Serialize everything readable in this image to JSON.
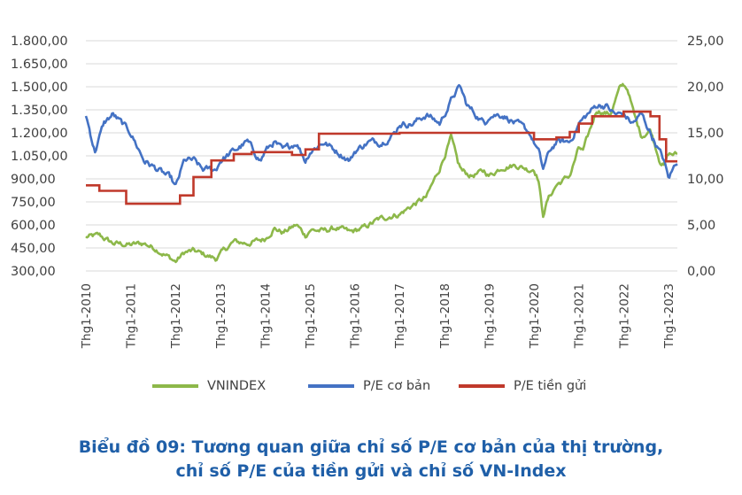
{
  "chart_data": {
    "type": "line",
    "title": "",
    "x_tick_labels": [
      "Thg1-2010",
      "Thg1-2011",
      "Thg1-2012",
      "Thg1-2013",
      "Thg1-2014",
      "Thg1-2015",
      "Thg1-2016",
      "Thg1-2017",
      "Thg1-2018",
      "Thg1-2019",
      "Thg1-2020",
      "Thg1-2021",
      "Thg1-2022",
      "Thg1-2023"
    ],
    "x_range": [
      2010.0,
      2023.2
    ],
    "y_left": {
      "ylim": [
        300,
        1800
      ],
      "ticks": [
        "1.800,00",
        "1.650,00",
        "1.500,00",
        "1.350,00",
        "1.200,00",
        "1.050,00",
        "900,00",
        "750,00",
        "600,00",
        "450,00",
        "300,00"
      ],
      "tick_values": [
        1800,
        1650,
        1500,
        1350,
        1200,
        1050,
        900,
        750,
        600,
        450,
        300
      ]
    },
    "y_right": {
      "ylim": [
        0,
        25
      ],
      "ticks": [
        "25,00",
        "20,00",
        "15,00",
        "10,00",
        "5,00",
        "0,00"
      ],
      "tick_values": [
        25,
        20,
        15,
        10,
        5,
        0
      ]
    },
    "grid": "horizontal",
    "legend_position": "bottom",
    "series": [
      {
        "name": "VNINDEX",
        "axis": "left",
        "color": "#8db84a",
        "x": [
          2010.0,
          2010.3,
          2010.6,
          2011.0,
          2011.3,
          2011.6,
          2011.9,
          2012.0,
          2012.2,
          2012.4,
          2012.6,
          2012.9,
          2013.0,
          2013.3,
          2013.6,
          2013.9,
          2014.0,
          2014.2,
          2014.4,
          2014.7,
          2014.9,
          2015.0,
          2015.3,
          2015.6,
          2015.9,
          2016.0,
          2016.2,
          2016.5,
          2016.8,
          2017.0,
          2017.3,
          2017.6,
          2017.9,
          2018.0,
          2018.15,
          2018.3,
          2018.4,
          2018.6,
          2018.9,
          2019.0,
          2019.3,
          2019.6,
          2019.9,
          2020.0,
          2020.1,
          2020.2,
          2020.3,
          2020.5,
          2020.8,
          2021.0,
          2021.1,
          2021.4,
          2021.7,
          2021.9,
          2022.0,
          2022.1,
          2022.25,
          2022.4,
          2022.6,
          2022.8,
          2022.9,
          2023.0,
          2023.2
        ],
        "y": [
          520,
          530,
          480,
          470,
          480,
          440,
          380,
          360,
          420,
          430,
          410,
          380,
          410,
          490,
          480,
          500,
          510,
          580,
          550,
          600,
          530,
          570,
          560,
          580,
          550,
          560,
          580,
          630,
          660,
          670,
          730,
          780,
          970,
          1050,
          1170,
          1000,
          950,
          920,
          950,
          920,
          980,
          990,
          960,
          970,
          900,
          660,
          760,
          860,
          920,
          1100,
          1080,
          1350,
          1320,
          1480,
          1510,
          1480,
          1300,
          1180,
          1220,
          1030,
          990,
          1060,
          1060
        ]
      },
      {
        "name": "P/E cơ bản",
        "axis": "right",
        "color": "#4472c4",
        "x": [
          2010.0,
          2010.2,
          2010.4,
          2010.6,
          2010.8,
          2011.0,
          2011.3,
          2011.6,
          2011.9,
          2012.0,
          2012.2,
          2012.4,
          2012.6,
          2012.9,
          2013.0,
          2013.3,
          2013.6,
          2013.9,
          2014.0,
          2014.2,
          2014.4,
          2014.7,
          2014.9,
          2015.0,
          2015.3,
          2015.6,
          2015.9,
          2016.0,
          2016.3,
          2016.6,
          2016.9,
          2017.0,
          2017.3,
          2017.6,
          2017.9,
          2018.0,
          2018.1,
          2018.2,
          2018.35,
          2018.5,
          2018.7,
          2018.9,
          2019.0,
          2019.3,
          2019.6,
          2019.9,
          2020.0,
          2020.1,
          2020.2,
          2020.35,
          2020.5,
          2020.8,
          2021.0,
          2021.2,
          2021.4,
          2021.6,
          2021.8,
          2022.0,
          2022.2,
          2022.4,
          2022.6,
          2022.8,
          2022.9,
          2023.0,
          2023.2
        ],
        "y": [
          17,
          13,
          16,
          17,
          16,
          15,
          12,
          11,
          10,
          9,
          12,
          12,
          11,
          11,
          12,
          13,
          14,
          12,
          13,
          14,
          13,
          14,
          12,
          13,
          14,
          13,
          12,
          13,
          14,
          14,
          15,
          16,
          16,
          17,
          16,
          17,
          18,
          19,
          20,
          18,
          17,
          16,
          17,
          17,
          16,
          15,
          14,
          13,
          11,
          13,
          14,
          14,
          16,
          17,
          18,
          18,
          17,
          17,
          16,
          17,
          15,
          13,
          12,
          10,
          12
        ]
      },
      {
        "name": "P/E tiền gửi",
        "axis": "right",
        "color": "#c0392b",
        "x": [
          2010.0,
          2010.3,
          2010.3,
          2010.9,
          2010.9,
          2012.1,
          2012.1,
          2012.4,
          2012.4,
          2012.8,
          2012.8,
          2013.3,
          2013.3,
          2013.7,
          2013.7,
          2014.6,
          2014.6,
          2014.9,
          2014.9,
          2015.2,
          2015.2,
          2017.0,
          2017.0,
          2020.0,
          2020.0,
          2020.5,
          2020.5,
          2020.8,
          2020.8,
          2021.0,
          2021.0,
          2021.3,
          2021.3,
          2022.0,
          2022.0,
          2022.6,
          2022.6,
          2022.8,
          2022.8,
          2022.95,
          2022.95,
          2023.2
        ],
        "y": [
          9.3,
          9.3,
          8.7,
          8.7,
          7.3,
          7.3,
          8.2,
          8.2,
          10.2,
          10.2,
          12,
          12,
          12.7,
          12.7,
          12.9,
          12.9,
          12.6,
          12.6,
          13.2,
          13.2,
          14.9,
          14.9,
          15,
          15,
          14.3,
          14.3,
          14.5,
          14.5,
          15.1,
          15.1,
          16,
          16,
          16.8,
          16.8,
          17.3,
          17.3,
          16.8,
          16.8,
          14.3,
          14.3,
          11.9,
          11.9
        ]
      }
    ]
  },
  "legend": [
    {
      "label": "VNINDEX",
      "color": "#8db84a"
    },
    {
      "label": "P/E cơ bản",
      "color": "#4472c4"
    },
    {
      "label": "P/E tiền gửi",
      "color": "#c0392b"
    }
  ],
  "caption": {
    "line1": "Biểu đồ 09: Tương quan giữa chỉ số P/E cơ bản của thị trường,",
    "line2": "chỉ số P/E của tiền gửi và chỉ số VN-Index"
  }
}
